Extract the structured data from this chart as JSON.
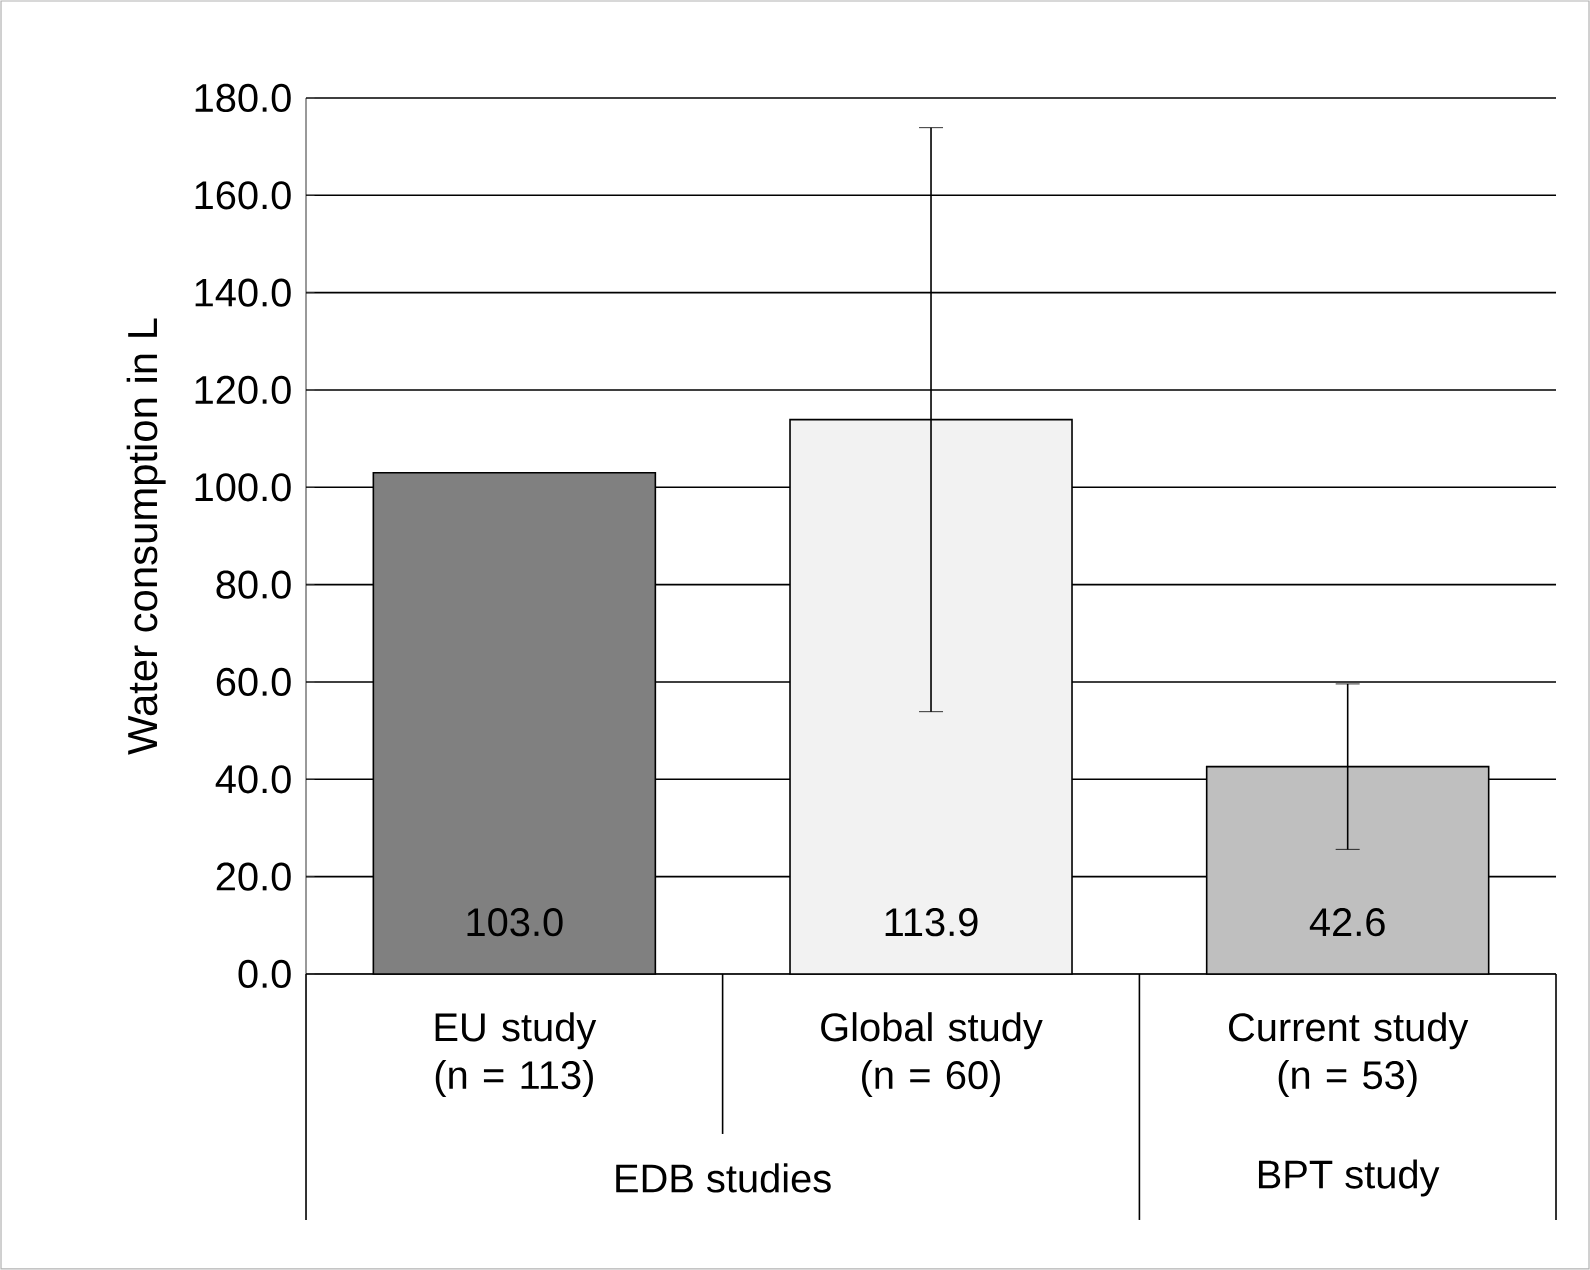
{
  "chart_data": {
    "type": "bar",
    "ylabel": "Water consumption in L",
    "categories": [
      "EU study (n = 113)",
      "Global study (n = 60)",
      "Current study (n = 53)"
    ],
    "values": [
      103.0,
      113.9,
      42.6
    ],
    "colors": [
      "#808080",
      "#f2f2f2",
      "#bfbfbf"
    ],
    "errors": [
      null,
      60,
      17
    ],
    "value_labels": [
      "103.0",
      "113.9",
      "42.6"
    ],
    "ylim": [
      0,
      180
    ],
    "yticks": [
      {
        "value": 0,
        "label": "0.0"
      },
      {
        "value": 20,
        "label": "20.0"
      },
      {
        "value": 40,
        "label": "40.0"
      },
      {
        "value": 60,
        "label": "60.0"
      },
      {
        "value": 80,
        "label": "80.0"
      },
      {
        "value": 100,
        "label": "100.0"
      },
      {
        "value": 120,
        "label": "120.0"
      },
      {
        "value": 140,
        "label": "140.0"
      },
      {
        "value": 160,
        "label": "160.0"
      },
      {
        "value": 180,
        "label": "180.0"
      }
    ],
    "grid": "y",
    "annotations": [
      "EDB studies",
      "BPT study"
    ]
  }
}
